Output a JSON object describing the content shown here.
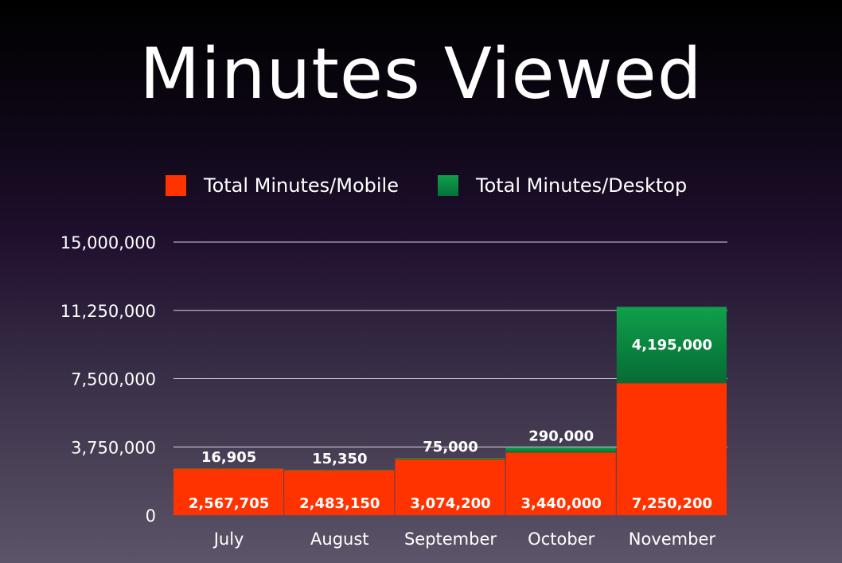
{
  "chart_data": {
    "type": "bar",
    "stacked": true,
    "title": "Minutes Viewed",
    "categories": [
      "July",
      "August",
      "September",
      "October",
      "November"
    ],
    "series": [
      {
        "name": "Total Minutes/Mobile",
        "color": "#ff3300",
        "values": [
          2567705,
          2483150,
          3074200,
          3440000,
          7250200
        ]
      },
      {
        "name": "Total Minutes/Desktop",
        "color": "#0a8a3a",
        "values": [
          16905,
          15350,
          75000,
          290000,
          4195000
        ]
      }
    ],
    "data_labels": {
      "Total Minutes/Mobile": [
        "2,567,705",
        "2,483,150",
        "3,074,200",
        "3,440,000",
        "7,250,200"
      ],
      "Total Minutes/Desktop": [
        "16,905",
        "15,350",
        "75,000",
        "290,000",
        "4,195,000"
      ]
    },
    "yticks": [
      0,
      3750000,
      7500000,
      11250000,
      15000000
    ],
    "ytick_labels": [
      "0",
      "3,750,000",
      "7,500,000",
      "11,250,000",
      "15,000,000"
    ],
    "ylim": [
      0,
      15000000
    ],
    "xlabel": "",
    "ylabel": "",
    "grid": true,
    "legend": "top"
  }
}
